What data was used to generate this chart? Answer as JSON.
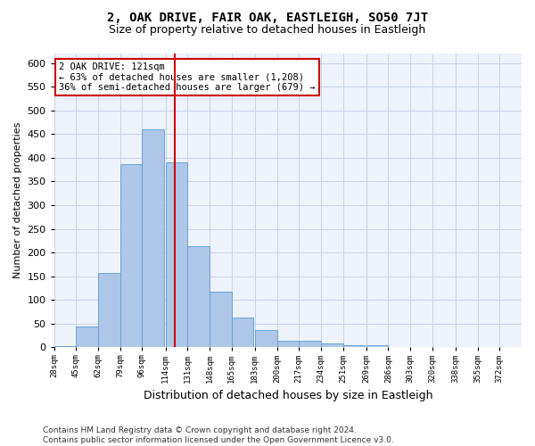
{
  "title": "2, OAK DRIVE, FAIR OAK, EASTLEIGH, SO50 7JT",
  "subtitle": "Size of property relative to detached houses in Eastleigh",
  "xlabel": "Distribution of detached houses by size in Eastleigh",
  "ylabel": "Number of detached properties",
  "bar_values": [
    2,
    44,
    158,
    386,
    460,
    390,
    213,
    118,
    63,
    36,
    14,
    15,
    8,
    4,
    5,
    1,
    0,
    0,
    0,
    0
  ],
  "bin_labels": [
    "28sqm",
    "45sqm",
    "62sqm",
    "79sqm",
    "96sqm",
    "114sqm",
    "131sqm",
    "148sqm",
    "165sqm",
    "183sqm",
    "200sqm",
    "217sqm",
    "234sqm",
    "251sqm",
    "269sqm",
    "286sqm",
    "303sqm",
    "320sqm",
    "338sqm",
    "355sqm",
    "372sqm"
  ],
  "bin_edges": [
    28,
    45,
    62,
    79,
    96,
    114,
    131,
    148,
    165,
    183,
    200,
    217,
    234,
    251,
    269,
    286,
    303,
    320,
    338,
    355,
    372
  ],
  "bar_color": "#aec6e8",
  "bar_edge_color": "#5a9fd4",
  "grid_color": "#c8d4e8",
  "background_color": "#eef2fa",
  "property_size": 121,
  "vline_color": "#cc0000",
  "annotation_line1": "2 OAK DRIVE: 121sqm",
  "annotation_line2": "← 63% of detached houses are smaller (1,208)",
  "annotation_line3": "36% of semi-detached houses are larger (679) →",
  "annotation_box_color": "#ffffff",
  "annotation_box_edge": "#cc0000",
  "ylim": [
    0,
    620
  ],
  "yticks": [
    0,
    50,
    100,
    150,
    200,
    250,
    300,
    350,
    400,
    450,
    500,
    550,
    600
  ],
  "footer_text": "Contains HM Land Registry data © Crown copyright and database right 2024.\nContains public sector information licensed under the Open Government Licence v3.0.",
  "title_fontsize": 10,
  "subtitle_fontsize": 9,
  "annotation_fontsize": 7.5,
  "footer_fontsize": 6.5,
  "ylabel_fontsize": 8,
  "xlabel_fontsize": 9
}
